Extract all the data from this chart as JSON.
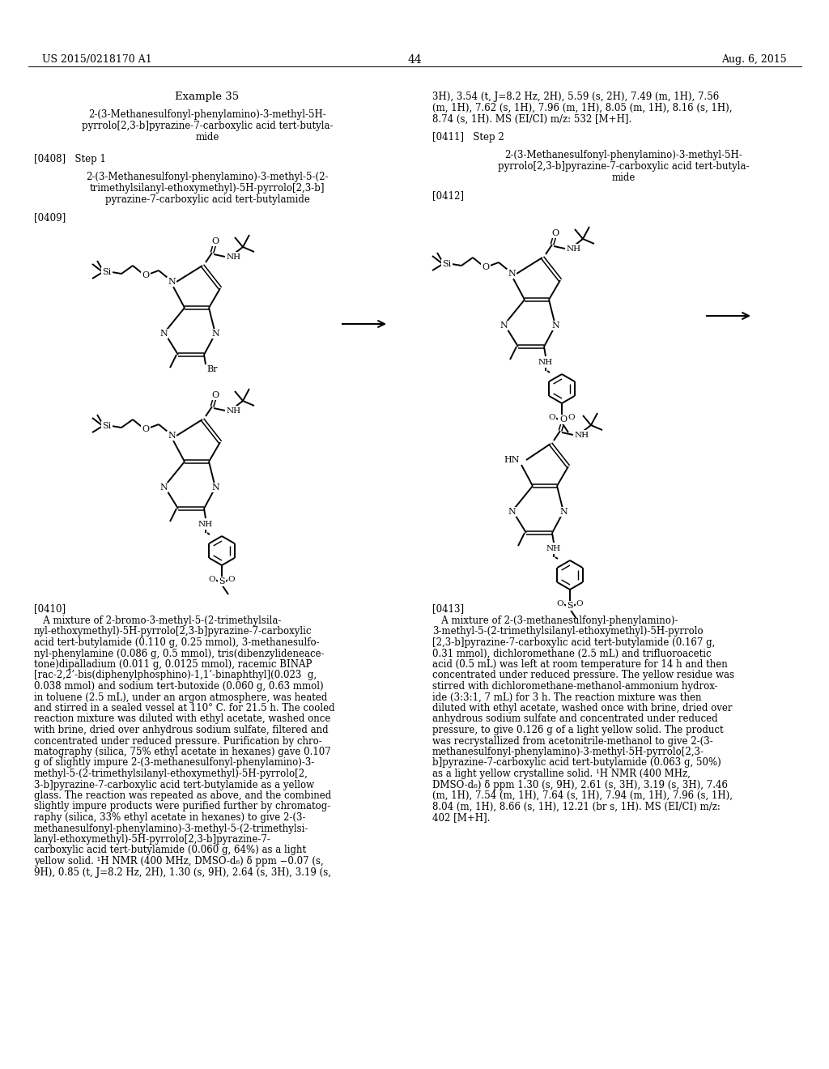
{
  "figsize": [
    10.24,
    13.2
  ],
  "dpi": 100,
  "bg": "#ffffff",
  "header_left": "US 2015/0218170 A1",
  "header_center": "44",
  "header_right": "Aug. 6, 2015",
  "lc_example": "Example 35",
  "lc_name1": "2-(3-Methanesulfonyl-phenylamino)-3-methyl-5H-",
  "lc_name2": "pyrrolo[2,3-b]pyrazine-7-carboxylic acid tert-butyla-",
  "lc_name3": "mide",
  "lc_0408": "[0408]   Step 1",
  "lc_step1_1": "2-(3-Methanesulfonyl-phenylamino)-3-methyl-5-(2-",
  "lc_step1_2": "trimethylsilanyl-ethoxymethyl)-5H-pyrrolo[2,3-b]",
  "lc_step1_3": "pyrazine-7-carboxylic acid tert-butylamide",
  "lc_0409": "[0409]",
  "rc_cont1": "3H), 3.54 (t, J=8.2 Hz, 2H), 5.59 (s, 2H), 7.49 (m, 1H), 7.56",
  "rc_cont2": "(m, 1H), 7.62 (s, 1H), 7.96 (m, 1H), 8.05 (m, 1H), 8.16 (s, 1H),",
  "rc_cont3": "8.74 (s, 1H). MS (EI/CI) m/z: 532 [M+H].",
  "rc_0411": "[0411]   Step 2",
  "rc_name1": "2-(3-Methanesulfonyl-phenylamino)-3-methyl-5H-",
  "rc_name2": "pyrrolo[2,3-b]pyrazine-7-carboxylic acid tert-butyla-",
  "rc_name3": "mide",
  "rc_0412": "[0412]",
  "rc_0413": "[0413]",
  "lc_0410": "[0410]",
  "lc_0410_lines": [
    "   A mixture of 2-bromo-3-methyl-5-(2-trimethylsila-",
    "nyl-ethoxymethyl)-5H-pyrrolo[2,3-b]pyrazine-7-carboxylic",
    "acid tert-butylamide (0.110 g, 0.25 mmol), 3-methanesulfo-",
    "nyl-phenylamine (0.086 g, 0.5 mmol), tris(dibenzylideneace-",
    "tone)dipalladium (0.011 g, 0.0125 mmol), racemic BINAP",
    "[rac-2,2’-bis(diphenylphosphino)-1,1’-binaphthyl](0.023  g,",
    "0.038 mmol) and sodium tert-butoxide (0.060 g, 0.63 mmol)",
    "in toluene (2.5 mL), under an argon atmosphere, was heated",
    "and stirred in a sealed vessel at 110° C. for 21.5 h. The cooled",
    "reaction mixture was diluted with ethyl acetate, washed once",
    "with brine, dried over anhydrous sodium sulfate, filtered and",
    "concentrated under reduced pressure. Purification by chro-",
    "matography (silica, 75% ethyl acetate in hexanes) gave 0.107",
    "g of slightly impure 2-(3-methanesulfonyl-phenylamino)-3-",
    "methyl-5-(2-trimethylsilanyl-ethoxymethyl)-5H-pyrrolo[2,",
    "3-b]pyrazine-7-carboxylic acid tert-butylamide as a yellow",
    "glass. The reaction was repeated as above, and the combined",
    "slightly impure products were purified further by chromatog-",
    "raphy (silica, 33% ethyl acetate in hexanes) to give 2-(3-",
    "methanesulfonyl-phenylamino)-3-methyl-5-(2-trimethylsi-",
    "lanyl-ethoxymethyl)-5H-pyrrolo[2,3-b]pyrazine-7-",
    "carboxylic acid tert-butylamide (0.060 g, 64%) as a light",
    "yellow solid. ¹H NMR (400 MHz, DMSO-d₆) δ ppm −0.07 (s,",
    "9H), 0.85 (t, J=8.2 Hz, 2H), 1.30 (s, 9H), 2.64 (s, 3H), 3.19 (s,"
  ],
  "rc_0413_lines": [
    "   A mixture of 2-(3-methanesulfonyl-phenylamino)-",
    "3-methyl-5-(2-trimethylsilanyl-ethoxymethyl)-5H-pyrrolo",
    "[2,3-b]pyrazine-7-carboxylic acid tert-butylamide (0.167 g,",
    "0.31 mmol), dichloromethane (2.5 mL) and trifluoroacetic",
    "acid (0.5 mL) was left at room temperature for 14 h and then",
    "concentrated under reduced pressure. The yellow residue was",
    "stirred with dichloromethane-methanol-ammonium hydrox-",
    "ide (3:3:1, 7 mL) for 3 h. The reaction mixture was then",
    "diluted with ethyl acetate, washed once with brine, dried over",
    "anhydrous sodium sulfate and concentrated under reduced",
    "pressure, to give 0.126 g of a light yellow solid. The product",
    "was recrystallized from acetonitrile-methanol to give 2-(3-",
    "methanesulfonyl-phenylamino)-3-methyl-5H-pyrrolo[2,3-",
    "b]pyrazine-7-carboxylic acid tert-butylamide (0.063 g, 50%)",
    "as a light yellow crystalline solid. ¹H NMR (400 MHz,",
    "DMSO-d₆) δ ppm 1.30 (s, 9H), 2.61 (s, 3H), 3.19 (s, 3H), 7.46",
    "(m, 1H), 7.54 (m, 1H), 7.64 (s, 1H), 7.94 (m, 1H), 7.96 (s, 1H),",
    "8.04 (m, 1H), 8.66 (s, 1H), 12.21 (br s, 1H). MS (EI/CI) m/z:",
    "402 [M+H]."
  ]
}
